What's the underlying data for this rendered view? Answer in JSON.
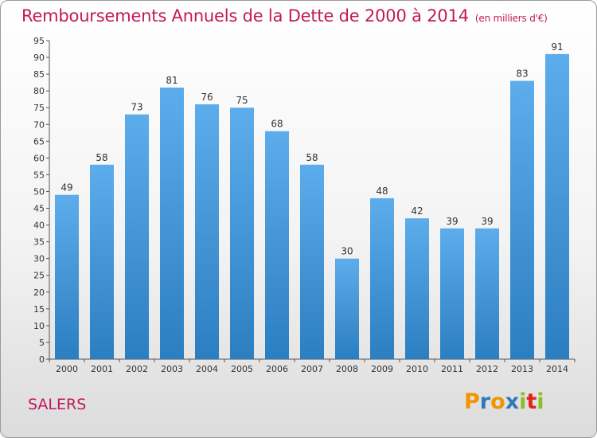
{
  "title": "Remboursements Annuels de la Dette de 2000 à 2014",
  "unit_note": "(en milliers d'€)",
  "commune": "SALERS",
  "logo": {
    "letters": [
      "P",
      "r",
      "o",
      "x",
      "i",
      "t",
      "i"
    ],
    "colors": [
      "#f29400",
      "#2e7ab8",
      "#f29400",
      "#2e7ab8",
      "#8cbf26",
      "#e2231a",
      "#8cbf26"
    ]
  },
  "colors": {
    "bar_light": "#5dadec",
    "bar_dark": "#2b7ec0",
    "title": "#c2185b"
  },
  "chart_data": {
    "type": "bar",
    "categories": [
      "2000",
      "2001",
      "2002",
      "2003",
      "2004",
      "2005",
      "2006",
      "2007",
      "2008",
      "2009",
      "2010",
      "2011",
      "2012",
      "2013",
      "2014"
    ],
    "values": [
      49,
      58,
      73,
      81,
      76,
      75,
      68,
      58,
      30,
      48,
      42,
      39,
      39,
      83,
      91
    ],
    "ylim": [
      0,
      95
    ],
    "yticks": [
      0,
      5,
      10,
      15,
      20,
      25,
      30,
      35,
      40,
      45,
      50,
      55,
      60,
      65,
      70,
      75,
      80,
      85,
      90,
      95
    ],
    "grid": false,
    "data_labels": true
  }
}
